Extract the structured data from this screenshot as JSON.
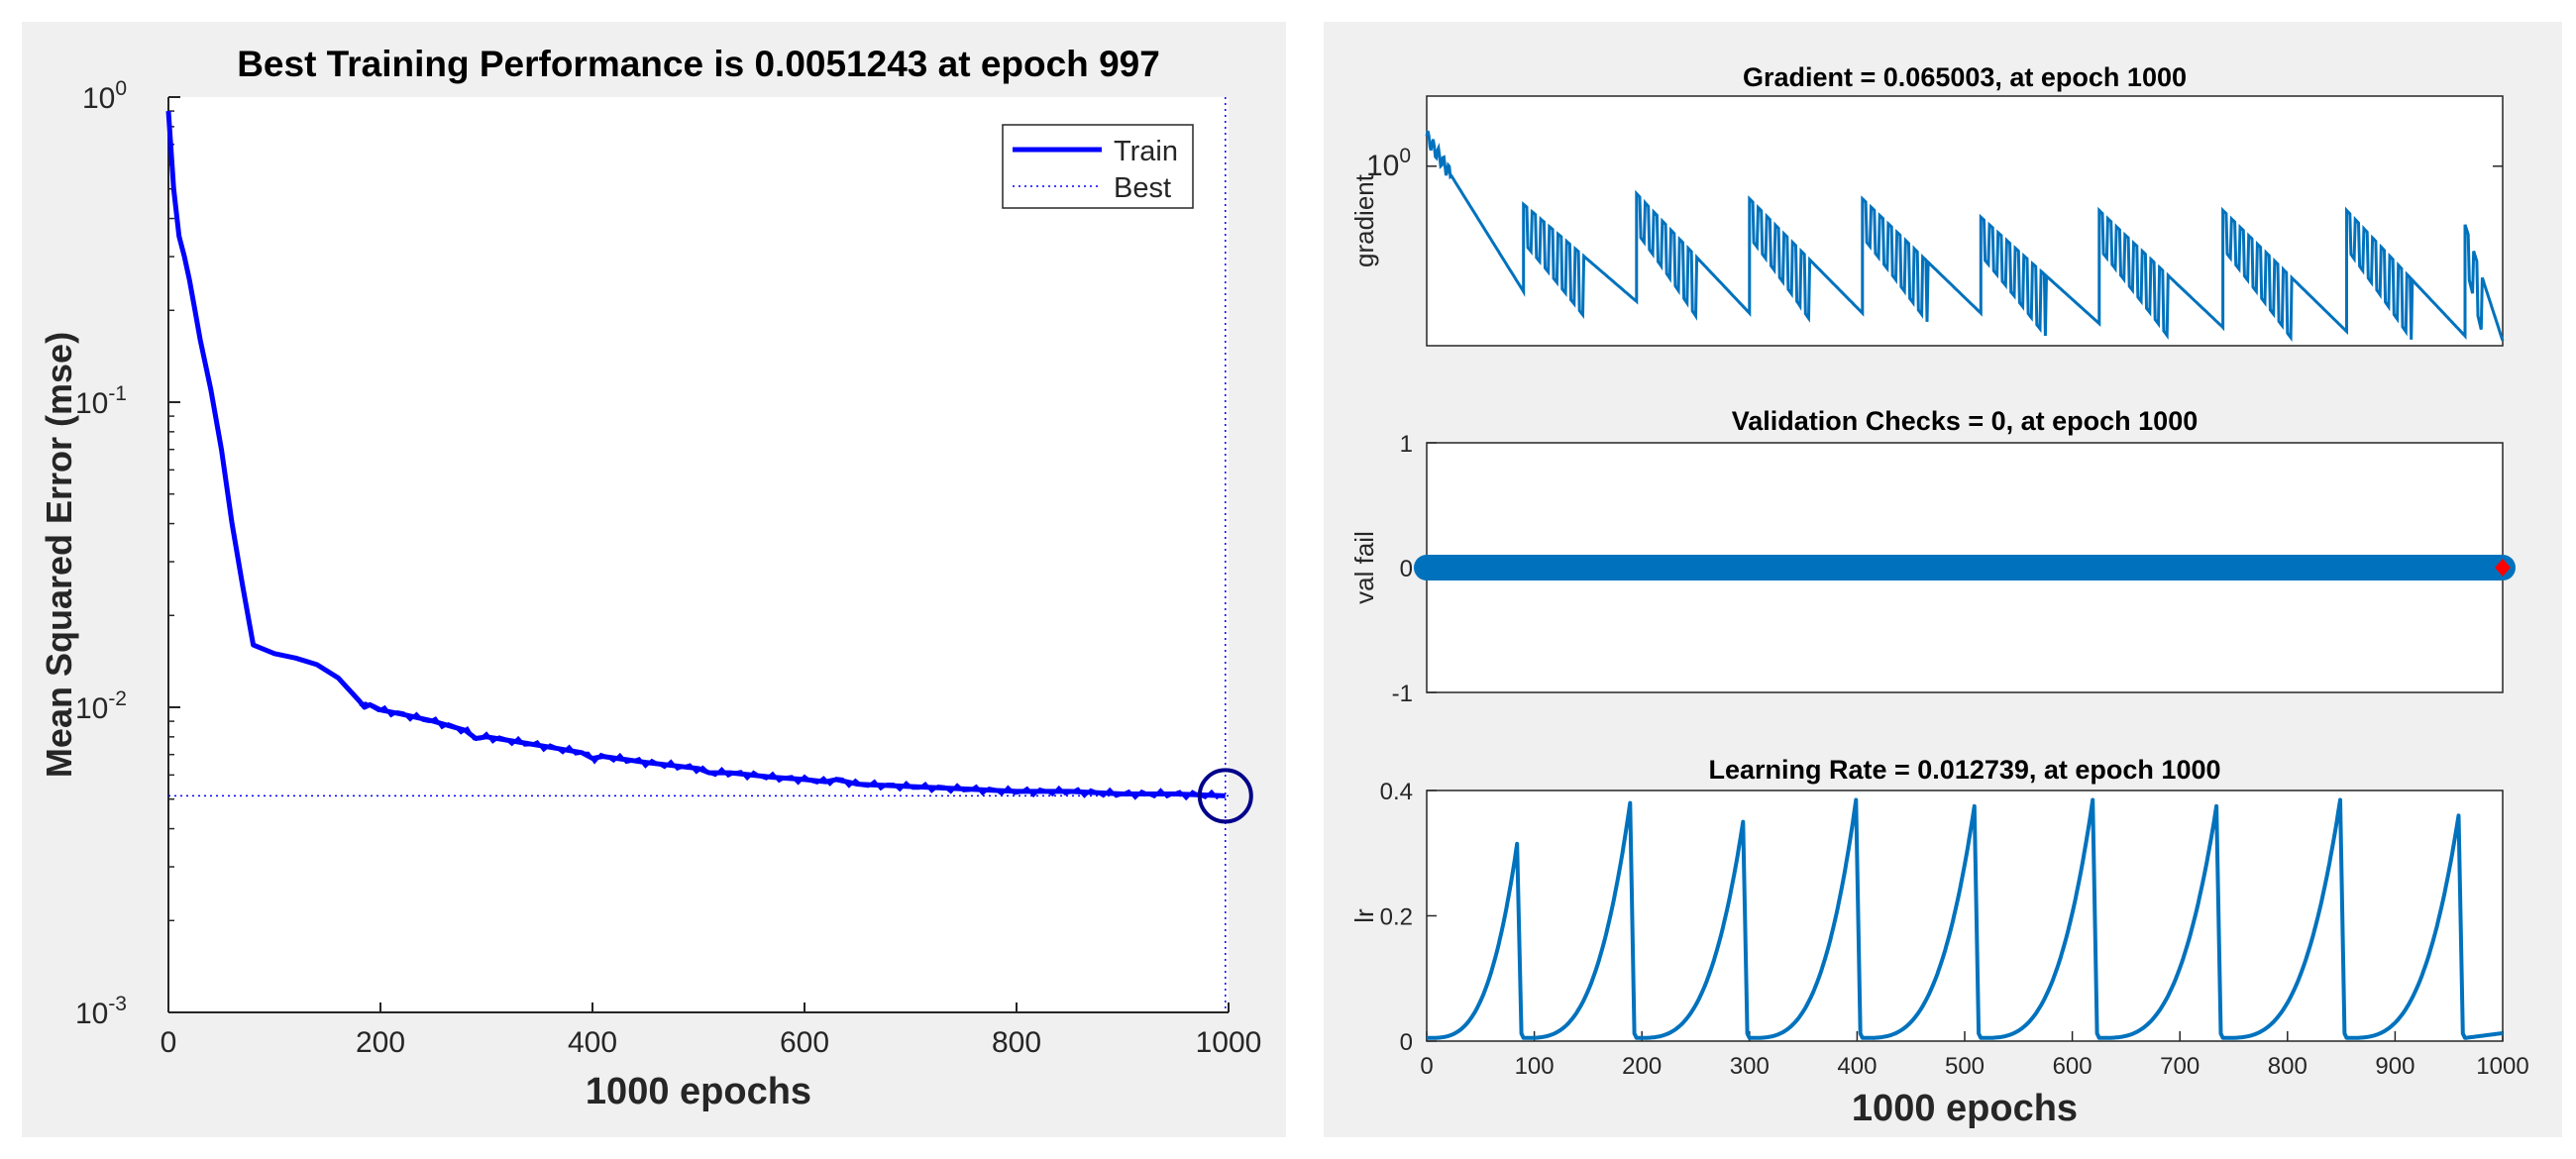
{
  "chart_data": [
    {
      "type": "line",
      "title": "Best Training Performance is 0.0051243 at epoch 997",
      "xlabel": "1000  epochs",
      "ylabel": "Mean Squared Error  (mse)",
      "yscale": "log",
      "xlim": [
        0,
        1000
      ],
      "ylim": [
        0.001,
        1
      ],
      "x_ticks": [
        "0",
        "200",
        "400",
        "600",
        "800",
        "1000"
      ],
      "y_ticks": [
        {
          "base": "10",
          "exp": "0"
        },
        {
          "base": "10",
          "exp": "-1"
        },
        {
          "base": "10",
          "exp": "-2"
        },
        {
          "base": "10",
          "exp": "-3"
        }
      ],
      "legend": [
        "Train",
        "Best"
      ],
      "legend_position": "top-right",
      "best": {
        "epoch": 997,
        "value": 0.0051243
      },
      "series": [
        {
          "name": "Train",
          "color": "#0000ff",
          "x": [
            0,
            5,
            10,
            15,
            20,
            25,
            30,
            40,
            50,
            60,
            70,
            80,
            90,
            100,
            120,
            140,
            160,
            180,
            185,
            190,
            200,
            220,
            250,
            280,
            290,
            300,
            330,
            360,
            390,
            400,
            410,
            450,
            500,
            510,
            530,
            570,
            600,
            620,
            630,
            650,
            700,
            750,
            800,
            850,
            900,
            950,
            997
          ],
          "y": [
            0.9,
            0.5,
            0.35,
            0.3,
            0.25,
            0.2,
            0.16,
            0.11,
            0.07,
            0.04,
            0.025,
            0.016,
            0.0155,
            0.015,
            0.0145,
            0.0138,
            0.0125,
            0.0105,
            0.01,
            0.0102,
            0.0098,
            0.0095,
            0.009,
            0.0084,
            0.0079,
            0.008,
            0.0077,
            0.0074,
            0.0071,
            0.0068,
            0.0069,
            0.0066,
            0.0063,
            0.0061,
            0.0061,
            0.0059,
            0.0058,
            0.0057,
            0.0058,
            0.0056,
            0.0055,
            0.0054,
            0.0053,
            0.0053,
            0.0052,
            0.0052,
            0.0051243
          ]
        }
      ]
    },
    {
      "type": "line",
      "title": "Gradient = 0.065003, at epoch 1000",
      "ylabel": "gradient",
      "yscale": "log",
      "xlim": [
        0,
        1000
      ],
      "ylim": [
        0.06,
        3
      ],
      "y_ticks": [
        {
          "base": "10",
          "exp": "0"
        }
      ],
      "color": "#0072bd",
      "cycle_starts": [
        0,
        90,
        195,
        300,
        405,
        515,
        625,
        740,
        855,
        965
      ],
      "cycle_peaks": [
        1.6,
        0.55,
        0.65,
        0.6,
        0.6,
        0.45,
        0.5,
        0.5,
        0.5,
        0.4
      ],
      "cycle_ends": [
        0.14,
        0.12,
        0.1,
        0.1,
        0.1,
        0.085,
        0.08,
        0.075,
        0.07,
        0.065003
      ]
    },
    {
      "type": "scatter",
      "title": "Validation Checks = 0, at epoch 1000",
      "ylabel": "val fail",
      "xlim": [
        0,
        1000
      ],
      "ylim": [
        -1,
        1
      ],
      "y_ticks": [
        "1",
        "0",
        "-1"
      ],
      "value": 0,
      "color": "#0072bd",
      "final_marker_color": "#ff0000"
    },
    {
      "type": "line",
      "title": "Learning Rate = 0.012739, at epoch 1000",
      "xlabel": "1000  epochs",
      "ylabel": "lr",
      "xlim": [
        0,
        1000
      ],
      "ylim": [
        0,
        0.4
      ],
      "x_ticks": [
        "0",
        "100",
        "200",
        "300",
        "400",
        "500",
        "600",
        "700",
        "800",
        "900",
        "1000"
      ],
      "y_ticks": [
        "0.4",
        "0.2",
        "0"
      ],
      "color": "#0072bd",
      "cycle_starts": [
        0,
        90,
        195,
        300,
        405,
        515,
        625,
        740,
        855,
        965
      ],
      "cycle_peaks": [
        0.315,
        0.38,
        0.35,
        0.385,
        0.375,
        0.385,
        0.375,
        0.385,
        0.36,
        0.012739
      ]
    }
  ]
}
